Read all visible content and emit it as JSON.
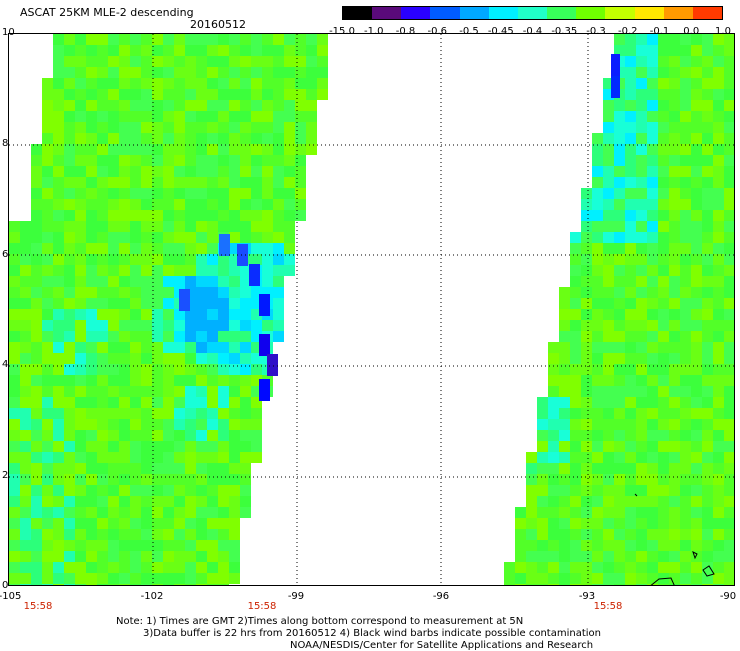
{
  "header": {
    "title": "ASCAT 25KM MLE-2 descending",
    "date": "20160512"
  },
  "colorbar": {
    "labels": [
      "-15.0",
      "-1.0",
      "-0.8",
      "-0.6",
      "-0.5",
      "-0.45",
      "-0.4",
      "-0.35",
      "-0.3",
      "-0.2",
      "-0.1",
      "0.0",
      "1.0"
    ],
    "colors": [
      "#000000",
      "#5a0a7a",
      "#2a00ff",
      "#005cff",
      "#00a8ff",
      "#00f0ff",
      "#20ffc8",
      "#38ff5a",
      "#70ff00",
      "#c4ff00",
      "#ffe800",
      "#ff9a00",
      "#ff3a00"
    ]
  },
  "map": {
    "y_ticks": [
      "10",
      "8",
      "6",
      "4",
      "2",
      "0"
    ],
    "x_ticks": [
      "-105",
      "-102",
      "-99",
      "-96",
      "-93",
      "-90"
    ],
    "time_labels": [
      "15:58",
      "15:58",
      "15:58"
    ]
  },
  "footer": {
    "line1": "Note: 1) Times are GMT 2)Times along bottom correspond to measurement at 5N",
    "line2": "3)Data buffer is 22 hrs from 20160512 4) Black wind barbs indicate possible contamination",
    "line3": "NOAA/NESDIS/Center for Satellite Applications and Research"
  }
}
